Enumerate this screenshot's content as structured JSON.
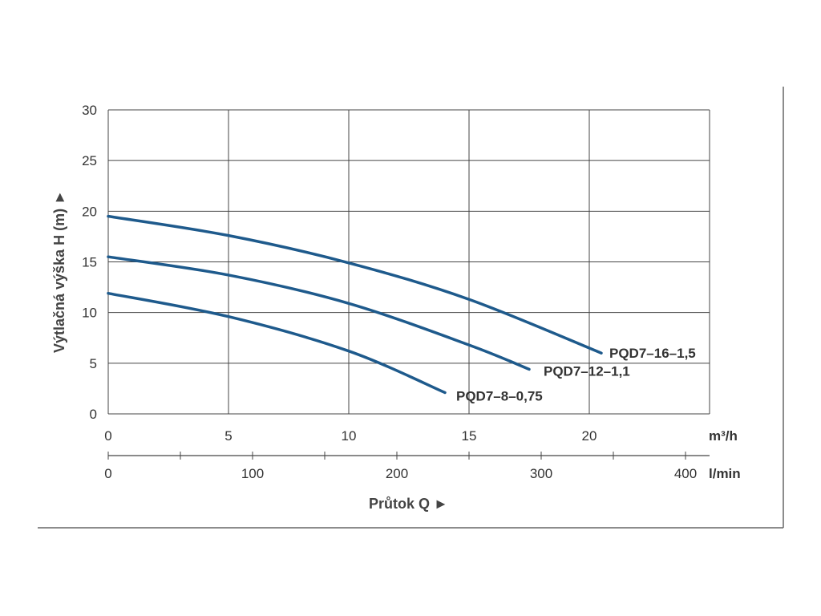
{
  "chart_data": {
    "type": "line",
    "ylabel": "Výtlačná výška H (m) ►",
    "xlabel": "Průtok Q ►",
    "y_ticks": [
      "0",
      "5",
      "10",
      "15",
      "20",
      "25",
      "30"
    ],
    "ylim": [
      0,
      30
    ],
    "x_ticks": [
      "0",
      "5",
      "10",
      "15",
      "20"
    ],
    "xlim": [
      0,
      25
    ],
    "x_unit": "m³/h",
    "x2_ticks": [
      "0",
      "100",
      "200",
      "300",
      "400"
    ],
    "x2_unit": "l/min",
    "grid": true,
    "series": [
      {
        "name": "PQD7–16–1,5",
        "color": "#1e5a8c",
        "x": [
          0,
          5,
          10,
          15,
          20.5
        ],
        "y": [
          19.5,
          17.6,
          14.9,
          11.3,
          6.0
        ]
      },
      {
        "name": "PQD7–12–1,1",
        "color": "#1e5a8c",
        "x": [
          0,
          5,
          10,
          15,
          17.5
        ],
        "y": [
          15.5,
          13.7,
          10.9,
          6.8,
          4.4
        ]
      },
      {
        "name": "PQD7–8–0,75",
        "color": "#1e5a8c",
        "x": [
          0,
          5,
          10,
          14
        ],
        "y": [
          11.9,
          9.6,
          6.2,
          2.1
        ]
      }
    ]
  }
}
